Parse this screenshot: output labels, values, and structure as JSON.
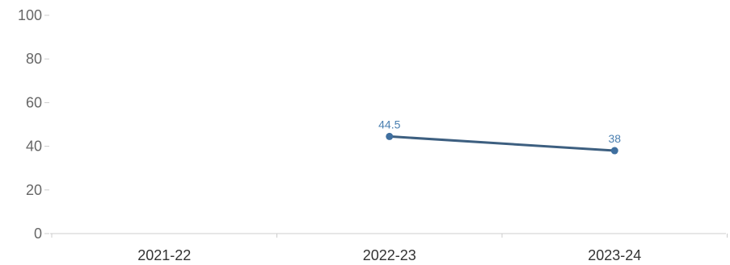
{
  "chart_data": {
    "type": "line",
    "categories": [
      "2021-22",
      "2022-23",
      "2023-24"
    ],
    "series": [
      {
        "values": [
          null,
          44.5,
          38
        ],
        "data_labels": [
          "",
          "44.5",
          "38"
        ],
        "color": "#3d5f80",
        "marker_color": "#3f6f9f"
      }
    ],
    "ylim": [
      0,
      100
    ],
    "y_ticks": [
      "0",
      "20",
      "40",
      "60",
      "80",
      "100"
    ],
    "grid": false,
    "label_color": "#4a7fb0",
    "axis_color": "#cccccc"
  }
}
